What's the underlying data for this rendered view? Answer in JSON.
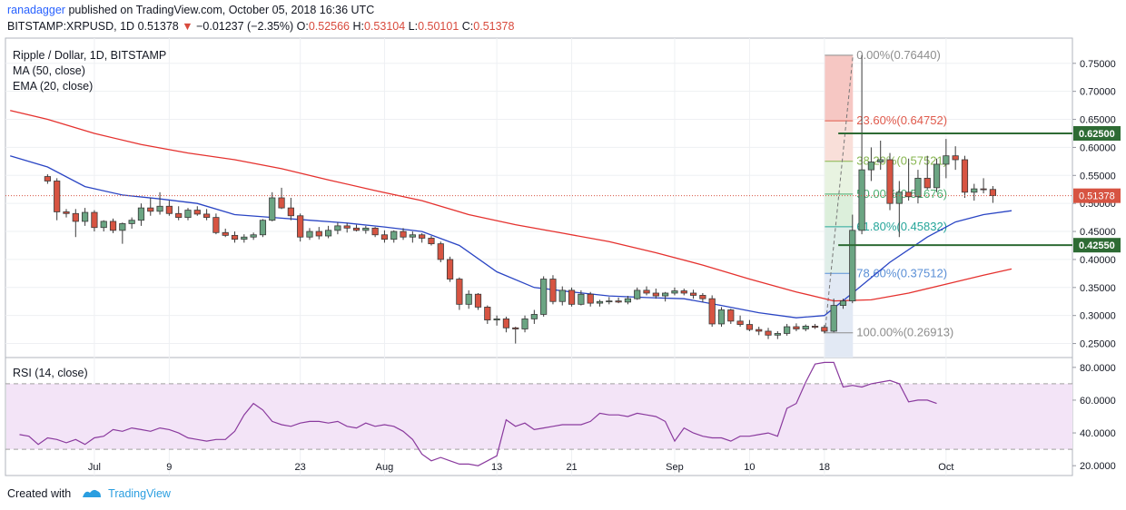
{
  "header": {
    "author": "ranadagger",
    "published_text": "published on TradingView.com, October 05, 2018 16:36 UTC",
    "symbol": "BITSTAMP:XRPUSD, 1D",
    "last": "0.51378",
    "direction_icon": "down-triangle-icon",
    "change": "−0.01237 (−2.35%)",
    "o_label": "O:",
    "o_value": "0.52566",
    "h_label": "H:",
    "h_value": "0.53104",
    "l_label": "L:",
    "l_value": "0.50101",
    "c_label": "C:",
    "c_value": "0.51378"
  },
  "legend": {
    "title": "Ripple / Dollar, 1D, BITSTAMP",
    "ma": "MA (50, close)",
    "ema": "EMA (20, close)"
  },
  "rsi_legend": "RSI (14, close)",
  "footer": {
    "created_with": "Created with",
    "brand": "TradingView"
  },
  "colors": {
    "up_candle": "#6ba583",
    "down_candle": "#d75442",
    "ma_line": "#e5312e",
    "ema_line": "#2a45c4",
    "rsi_line": "#8a3a9e",
    "rsi_band": "#f3e4f7",
    "support_line": "#2e6b34",
    "last_price_tag": "#d75442",
    "level_tag": "#2e6b34"
  },
  "chart_data": {
    "type": "candlestick",
    "title": "Ripple / Dollar, 1D, BITSTAMP",
    "x_ticks": [
      "Jul",
      "9",
      "23",
      "Aug",
      "13",
      "21",
      "Sep",
      "10",
      "18",
      "Oct"
    ],
    "x_tick_days": [
      5,
      13,
      27,
      36,
      48,
      56,
      67,
      75,
      83,
      96
    ],
    "y_ticks": [
      "0.75000",
      "0.70000",
      "0.65000",
      "0.60000",
      "0.55000",
      "0.50000",
      "0.45000",
      "0.40000",
      "0.35000",
      "0.30000",
      "0.25000"
    ],
    "y_range": [
      0.225,
      0.795
    ],
    "x_range": [
      -4.5,
      109.5
    ],
    "last_price": "0.51378",
    "horizontal_levels": [
      {
        "label": "0.62500",
        "value": 0.625
      },
      {
        "label": "0.42550",
        "value": 0.4255
      }
    ],
    "fibonacci": {
      "start_day": 83,
      "end_day": 86,
      "levels": [
        {
          "label": "0.00%(0.76440)",
          "value": 0.7644
        },
        {
          "label": "23.60%(0.64752)",
          "value": 0.64752
        },
        {
          "label": "38.20%(0.57521)",
          "value": 0.57521
        },
        {
          "label": "50.00%(0.51676)",
          "value": 0.51676
        },
        {
          "label": "61.80%(0.45832)",
          "value": 0.45832
        },
        {
          "label": "78.60%(0.37512)",
          "value": 0.37512
        },
        {
          "label": "100.00%(0.26913)",
          "value": 0.26913
        }
      ]
    },
    "candles": [
      [
        0.548,
        0.552,
        0.535,
        0.54
      ],
      [
        0.54,
        0.545,
        0.47,
        0.485
      ],
      [
        0.485,
        0.49,
        0.475,
        0.482
      ],
      [
        0.482,
        0.49,
        0.44,
        0.468
      ],
      [
        0.468,
        0.492,
        0.46,
        0.484
      ],
      [
        0.484,
        0.488,
        0.45,
        0.457
      ],
      [
        0.457,
        0.47,
        0.45,
        0.468
      ],
      [
        0.468,
        0.473,
        0.447,
        0.452
      ],
      [
        0.452,
        0.466,
        0.428,
        0.464
      ],
      [
        0.464,
        0.475,
        0.455,
        0.47
      ],
      [
        0.47,
        0.5,
        0.46,
        0.492
      ],
      [
        0.492,
        0.51,
        0.478,
        0.486
      ],
      [
        0.486,
        0.52,
        0.48,
        0.495
      ],
      [
        0.495,
        0.505,
        0.478,
        0.482
      ],
      [
        0.482,
        0.495,
        0.47,
        0.475
      ],
      [
        0.475,
        0.492,
        0.47,
        0.488
      ],
      [
        0.488,
        0.495,
        0.478,
        0.481
      ],
      [
        0.481,
        0.49,
        0.47,
        0.475
      ],
      [
        0.475,
        0.482,
        0.445,
        0.448
      ],
      [
        0.448,
        0.455,
        0.44,
        0.443
      ],
      [
        0.443,
        0.45,
        0.43,
        0.436
      ],
      [
        0.436,
        0.445,
        0.43,
        0.44
      ],
      [
        0.44,
        0.448,
        0.435,
        0.444
      ],
      [
        0.444,
        0.472,
        0.44,
        0.47
      ],
      [
        0.47,
        0.52,
        0.468,
        0.51
      ],
      [
        0.51,
        0.528,
        0.49,
        0.492
      ],
      [
        0.492,
        0.51,
        0.47,
        0.478
      ],
      [
        0.478,
        0.482,
        0.432,
        0.44
      ],
      [
        0.44,
        0.456,
        0.435,
        0.45
      ],
      [
        0.45,
        0.458,
        0.436,
        0.442
      ],
      [
        0.442,
        0.46,
        0.438,
        0.452
      ],
      [
        0.452,
        0.466,
        0.445,
        0.46
      ],
      [
        0.46,
        0.465,
        0.448,
        0.456
      ],
      [
        0.456,
        0.462,
        0.45,
        0.452
      ],
      [
        0.452,
        0.46,
        0.446,
        0.456
      ],
      [
        0.456,
        0.458,
        0.44,
        0.444
      ],
      [
        0.444,
        0.452,
        0.43,
        0.436
      ],
      [
        0.436,
        0.452,
        0.43,
        0.45
      ],
      [
        0.45,
        0.456,
        0.435,
        0.44
      ],
      [
        0.44,
        0.45,
        0.43,
        0.444
      ],
      [
        0.444,
        0.447,
        0.43,
        0.438
      ],
      [
        0.438,
        0.442,
        0.425,
        0.428
      ],
      [
        0.428,
        0.432,
        0.395,
        0.4
      ],
      [
        0.4,
        0.405,
        0.36,
        0.365
      ],
      [
        0.365,
        0.368,
        0.31,
        0.32
      ],
      [
        0.32,
        0.345,
        0.312,
        0.338
      ],
      [
        0.338,
        0.34,
        0.31,
        0.315
      ],
      [
        0.315,
        0.318,
        0.285,
        0.292
      ],
      [
        0.292,
        0.3,
        0.282,
        0.294
      ],
      [
        0.294,
        0.298,
        0.27,
        0.278
      ],
      [
        0.278,
        0.28,
        0.25,
        0.276
      ],
      [
        0.276,
        0.3,
        0.27,
        0.294
      ],
      [
        0.294,
        0.31,
        0.285,
        0.302
      ],
      [
        0.302,
        0.37,
        0.298,
        0.365
      ],
      [
        0.365,
        0.372,
        0.32,
        0.325
      ],
      [
        0.325,
        0.352,
        0.318,
        0.345
      ],
      [
        0.345,
        0.35,
        0.316,
        0.32
      ],
      [
        0.32,
        0.345,
        0.318,
        0.338
      ],
      [
        0.338,
        0.342,
        0.316,
        0.322
      ],
      [
        0.322,
        0.328,
        0.316,
        0.325
      ],
      [
        0.325,
        0.333,
        0.32,
        0.326
      ],
      [
        0.326,
        0.332,
        0.322,
        0.324
      ],
      [
        0.324,
        0.335,
        0.32,
        0.33
      ],
      [
        0.33,
        0.35,
        0.328,
        0.345
      ],
      [
        0.345,
        0.352,
        0.336,
        0.34
      ],
      [
        0.34,
        0.348,
        0.33,
        0.335
      ],
      [
        0.335,
        0.342,
        0.325,
        0.34
      ],
      [
        0.34,
        0.35,
        0.336,
        0.344
      ],
      [
        0.344,
        0.348,
        0.336,
        0.34
      ],
      [
        0.34,
        0.346,
        0.33,
        0.336
      ],
      [
        0.336,
        0.34,
        0.324,
        0.33
      ],
      [
        0.33,
        0.336,
        0.28,
        0.285
      ],
      [
        0.285,
        0.315,
        0.28,
        0.31
      ],
      [
        0.31,
        0.312,
        0.285,
        0.29
      ],
      [
        0.29,
        0.3,
        0.28,
        0.284
      ],
      [
        0.284,
        0.292,
        0.272,
        0.275
      ],
      [
        0.275,
        0.28,
        0.265,
        0.272
      ],
      [
        0.272,
        0.278,
        0.258,
        0.265
      ],
      [
        0.265,
        0.272,
        0.258,
        0.268
      ],
      [
        0.268,
        0.285,
        0.264,
        0.28
      ],
      [
        0.28,
        0.286,
        0.272,
        0.276
      ],
      [
        0.276,
        0.284,
        0.272,
        0.281
      ],
      [
        0.281,
        0.285,
        0.276,
        0.279
      ],
      [
        0.279,
        0.283,
        0.268,
        0.272
      ],
      [
        0.272,
        0.33,
        0.27,
        0.318
      ],
      [
        0.318,
        0.33,
        0.312,
        0.326
      ],
      [
        0.326,
        0.48,
        0.322,
        0.452
      ],
      [
        0.452,
        0.7644,
        0.445,
        0.56
      ],
      [
        0.56,
        0.6,
        0.54,
        0.574
      ],
      [
        0.574,
        0.612,
        0.56,
        0.578
      ],
      [
        0.578,
        0.59,
        0.488,
        0.5
      ],
      [
        0.5,
        0.54,
        0.44,
        0.52
      ],
      [
        0.52,
        0.58,
        0.505,
        0.512
      ],
      [
        0.512,
        0.56,
        0.5,
        0.545
      ],
      [
        0.545,
        0.585,
        0.525,
        0.528
      ],
      [
        0.528,
        0.58,
        0.52,
        0.57
      ],
      [
        0.57,
        0.615,
        0.545,
        0.585
      ],
      [
        0.585,
        0.602,
        0.56,
        0.578
      ],
      [
        0.578,
        0.585,
        0.51,
        0.52
      ],
      [
        0.52,
        0.535,
        0.505,
        0.526
      ],
      [
        0.526,
        0.545,
        0.518,
        0.525
      ],
      [
        0.525,
        0.531,
        0.501,
        0.514
      ]
    ],
    "ma_50": [
      [
        -4,
        0.666
      ],
      [
        0,
        0.65
      ],
      [
        5,
        0.625
      ],
      [
        10,
        0.605
      ],
      [
        15,
        0.59
      ],
      [
        20,
        0.578
      ],
      [
        25,
        0.562
      ],
      [
        30,
        0.542
      ],
      [
        35,
        0.523
      ],
      [
        40,
        0.505
      ],
      [
        45,
        0.48
      ],
      [
        50,
        0.462
      ],
      [
        55,
        0.447
      ],
      [
        60,
        0.432
      ],
      [
        65,
        0.412
      ],
      [
        70,
        0.39
      ],
      [
        75,
        0.365
      ],
      [
        80,
        0.342
      ],
      [
        84,
        0.326
      ],
      [
        88,
        0.328
      ],
      [
        92,
        0.34
      ],
      [
        96,
        0.356
      ],
      [
        100,
        0.372
      ],
      [
        103,
        0.383
      ]
    ],
    "ema_20": [
      [
        -4,
        0.585
      ],
      [
        0,
        0.565
      ],
      [
        4,
        0.53
      ],
      [
        8,
        0.515
      ],
      [
        12,
        0.508
      ],
      [
        16,
        0.5
      ],
      [
        20,
        0.48
      ],
      [
        24,
        0.475
      ],
      [
        28,
        0.47
      ],
      [
        32,
        0.465
      ],
      [
        36,
        0.458
      ],
      [
        40,
        0.45
      ],
      [
        44,
        0.425
      ],
      [
        48,
        0.378
      ],
      [
        52,
        0.35
      ],
      [
        56,
        0.342
      ],
      [
        60,
        0.335
      ],
      [
        64,
        0.332
      ],
      [
        68,
        0.33
      ],
      [
        72,
        0.318
      ],
      [
        76,
        0.305
      ],
      [
        80,
        0.296
      ],
      [
        83,
        0.3
      ],
      [
        86,
        0.34
      ],
      [
        90,
        0.395
      ],
      [
        94,
        0.44
      ],
      [
        97,
        0.467
      ],
      [
        100,
        0.48
      ],
      [
        103,
        0.487
      ]
    ],
    "rsi": {
      "label": "RSI (14, close)",
      "y_ticks": [
        "80.0000",
        "60.0000",
        "40.0000",
        "20.0000"
      ],
      "y_range": [
        14,
        86
      ],
      "upper_band": 70,
      "lower_band": 30,
      "values": [
        39,
        38,
        33,
        37,
        36,
        34,
        36,
        33,
        37,
        38,
        42,
        41,
        43,
        42,
        41,
        43,
        42,
        40,
        37,
        36,
        35,
        36,
        36,
        41,
        51,
        58,
        54,
        47,
        45,
        44,
        46,
        47,
        47,
        46,
        47,
        44,
        43,
        46,
        44,
        45,
        44,
        41,
        36,
        27,
        23,
        25,
        23,
        21,
        21,
        20,
        23,
        26,
        48,
        44,
        46,
        42,
        43,
        44,
        45,
        45,
        45,
        47,
        52,
        51,
        51,
        50,
        52,
        51,
        50,
        47,
        35,
        43,
        40,
        38,
        37,
        37,
        35,
        38,
        38,
        39,
        40,
        38,
        55,
        58,
        71,
        82,
        83,
        83,
        68,
        69,
        68,
        70,
        71,
        72,
        70,
        59,
        60,
        60,
        58
      ]
    }
  }
}
